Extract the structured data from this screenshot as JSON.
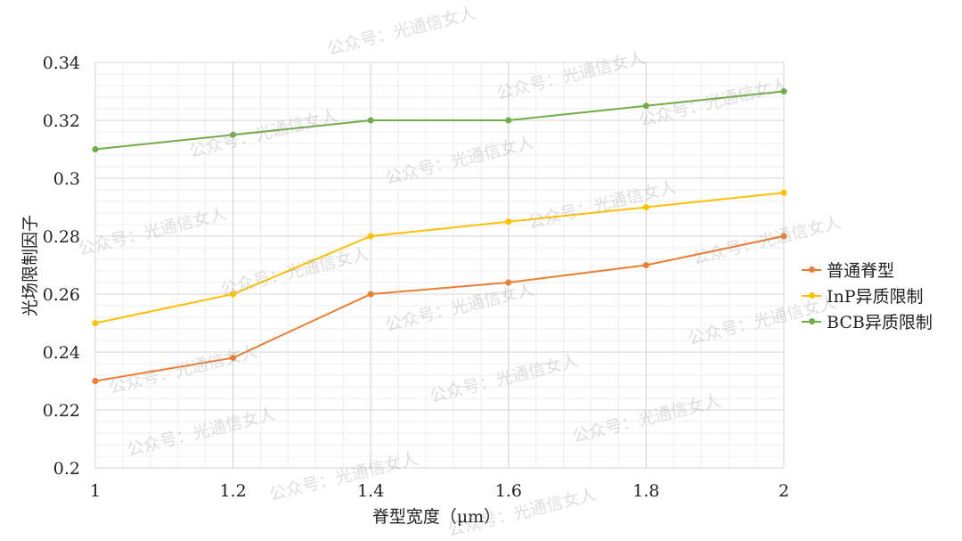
{
  "chart_data": {
    "type": "line",
    "title": "",
    "xlabel": "脊型宽度（μm）",
    "ylabel": "光场限制因子",
    "x": [
      1,
      1.2,
      1.4,
      1.6,
      1.8,
      2
    ],
    "x_tick_labels": [
      "1",
      "1.2",
      "1.4",
      "1.6",
      "1.8",
      "2"
    ],
    "xlim": [
      1,
      2
    ],
    "ylim": [
      0.2,
      0.34
    ],
    "y_ticks": [
      0.2,
      0.22,
      0.24,
      0.26,
      0.28,
      0.3,
      0.32,
      0.34
    ],
    "y_tick_labels": [
      "0.2",
      "0.22",
      "0.24",
      "0.26",
      "0.28",
      "0.3",
      "0.32",
      "0.34"
    ],
    "grid": true,
    "legend_position": "right",
    "series": [
      {
        "name": "普通脊型",
        "color": "#ED7D31",
        "values": [
          0.23,
          0.238,
          0.26,
          0.264,
          0.27,
          0.28
        ]
      },
      {
        "name": "InP异质限制",
        "color": "#FFC000",
        "values": [
          0.25,
          0.26,
          0.28,
          0.285,
          0.29,
          0.295
        ]
      },
      {
        "name": "BCB异质限制",
        "color": "#70AD47",
        "values": [
          0.31,
          0.315,
          0.32,
          0.32,
          0.325,
          0.33
        ]
      }
    ]
  },
  "watermark": "公众号：光通信女人"
}
